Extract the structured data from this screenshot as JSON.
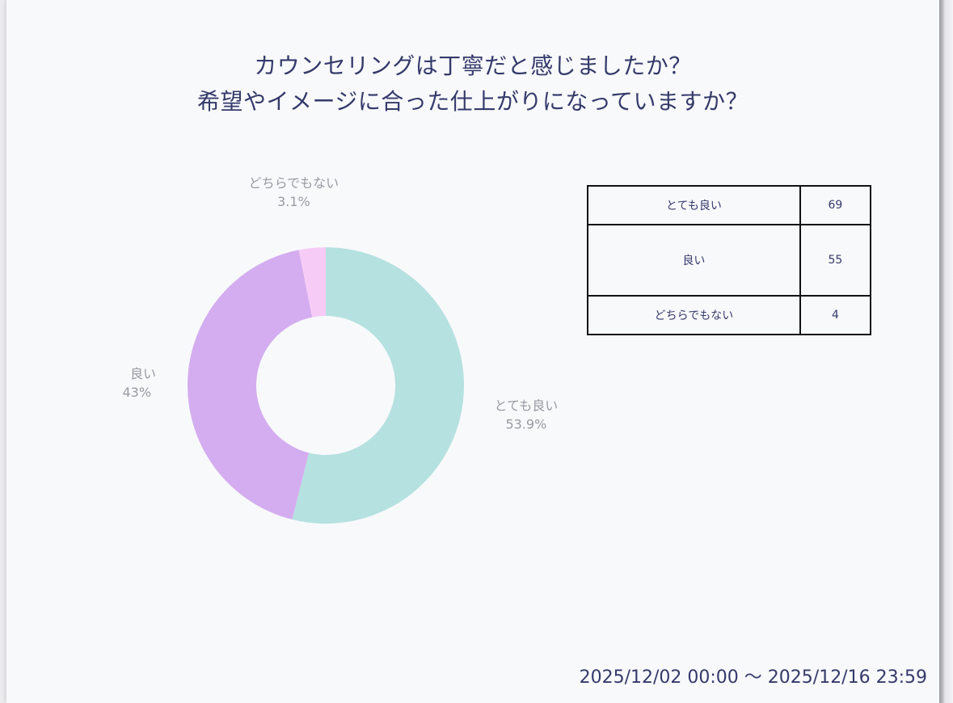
{
  "chart_data": {
    "type": "pie",
    "title_lines": [
      "カウンセリングは丁寧だと感じましたか？",
      "希望やイメージに合った仕上がりになっていますか？"
    ],
    "categories": [
      "とても良い",
      "良い",
      "どちらでもない"
    ],
    "values": [
      69,
      55,
      4
    ],
    "percent_labels": [
      "53.9%",
      "43%",
      "3.1%"
    ],
    "colors": [
      "#b5e1e0",
      "#d4adf0",
      "#f6ccf6"
    ],
    "donut": true,
    "legend": "none"
  },
  "table": {
    "rows": [
      {
        "label": "とても良い",
        "value": "69"
      },
      {
        "label": "良い",
        "value": "55"
      },
      {
        "label": "どちらでもない",
        "value": "4"
      }
    ]
  },
  "date_range": "2025/12/02 00:00 〜 2025/12/16 23:59"
}
